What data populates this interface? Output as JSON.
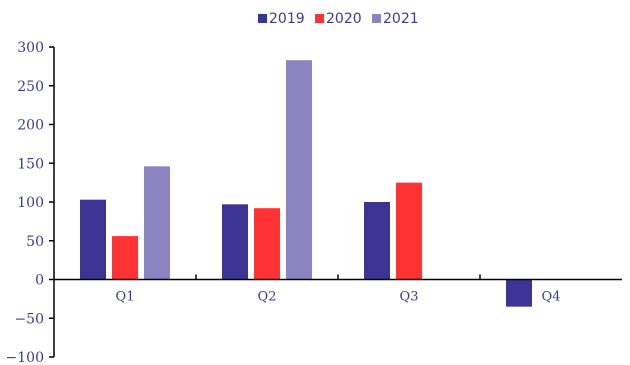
{
  "chart_data": {
    "type": "bar",
    "categories": [
      "Q1",
      "Q2",
      "Q3",
      "Q4"
    ],
    "series": [
      {
        "name": "2019",
        "color": "#3c3494",
        "values": [
          103,
          97,
          100,
          -35
        ]
      },
      {
        "name": "2020",
        "color": "#ff3333",
        "values": [
          56,
          92,
          125,
          null
        ]
      },
      {
        "name": "2021",
        "color": "#8c84c0",
        "values": [
          146,
          283,
          null,
          null
        ]
      }
    ],
    "title": "",
    "xlabel": "",
    "ylabel": "",
    "ylim": [
      -100,
      300
    ],
    "yticks": [
      -100,
      -50,
      0,
      50,
      100,
      150,
      200,
      250,
      300
    ],
    "grid": false,
    "legend_position": "top-center"
  }
}
